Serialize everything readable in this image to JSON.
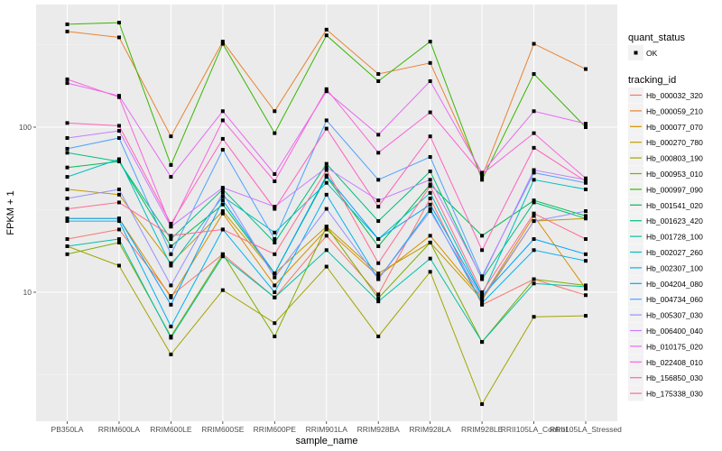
{
  "chart_data": {
    "type": "line",
    "title": "",
    "xlabel": "sample_name",
    "ylabel": "FPKM + 1",
    "yscale": "log10",
    "ylim": [
      1.55,
      620
    ],
    "yticks": [
      10,
      100
    ],
    "ytick_labels": [
      "10",
      "100"
    ],
    "grid": true,
    "legend_position": "right",
    "categories": [
      "PB350LA",
      "RRIM600LA",
      "RRIM600LE",
      "RRIM600SE",
      "RRIM600PE",
      "RRIM901LA",
      "RRIM928BA",
      "RRIM928LA",
      "RRIM928LE",
      "RRII105LA_Control",
      "RRII105LA_Stressed"
    ],
    "legend_shape": {
      "title": "quant_status",
      "entries": [
        "OK"
      ]
    },
    "legend_color_title": "tracking_id",
    "series": [
      {
        "name": "Hb_000032_320",
        "color": "#F8766D",
        "values": [
          21,
          24,
          9.5,
          17,
          9.3,
          22,
          9.7,
          37,
          8.4,
          12,
          9.6
        ]
      },
      {
        "name": "Hb_000059_210",
        "color": "#EA8331",
        "values": [
          380,
          350,
          88,
          330,
          125,
          390,
          210,
          245,
          50,
          320,
          225
        ]
      },
      {
        "name": "Hb_000077_070",
        "color": "#D89000",
        "values": [
          28,
          28,
          9.3,
          30,
          11,
          24,
          12.5,
          22,
          9.2,
          29,
          10.5
        ]
      },
      {
        "name": "Hb_000270_780",
        "color": "#C09B00",
        "values": [
          42,
          39,
          15,
          31,
          13,
          25,
          13,
          20,
          9,
          27,
          28
        ]
      },
      {
        "name": "Hb_000803_190",
        "color": "#A3A500",
        "values": [
          19,
          14.5,
          4.2,
          10.3,
          6.5,
          14.3,
          5.4,
          13.3,
          2.1,
          7.1,
          7.2
        ]
      },
      {
        "name": "Hb_000953_010",
        "color": "#7CAE00",
        "values": [
          17,
          20,
          5.4,
          17,
          5.4,
          25,
          9.2,
          20,
          5,
          12,
          11
        ]
      },
      {
        "name": "Hb_000997_090",
        "color": "#39B600",
        "values": [
          420,
          430,
          59,
          320,
          92,
          360,
          190,
          330,
          48,
          210,
          100
        ]
      },
      {
        "name": "Hb_001541_020",
        "color": "#00BB4E",
        "values": [
          57,
          62,
          19,
          34,
          13,
          50,
          19,
          45,
          22,
          36,
          29
        ]
      },
      {
        "name": "Hb_001623_420",
        "color": "#00BF7D",
        "values": [
          70,
          62,
          21,
          42,
          20,
          60,
          27,
          54,
          12,
          35,
          28
        ]
      },
      {
        "name": "Hb_001728_100",
        "color": "#00C1A3",
        "values": [
          19,
          21,
          5.3,
          16.5,
          9.3,
          18,
          8.8,
          16,
          5,
          11.3,
          10.8
        ]
      },
      {
        "name": "Hb_002027_260",
        "color": "#00BFC4",
        "values": [
          50,
          64,
          14.5,
          38,
          23,
          46,
          21,
          40,
          9.6,
          48,
          42
        ]
      },
      {
        "name": "Hb_002307_100",
        "color": "#00B2F3",
        "values": [
          27,
          27,
          6.2,
          24,
          10,
          39,
          12,
          32,
          8.6,
          18,
          15.5
        ]
      },
      {
        "name": "Hb_004204_080",
        "color": "#00A5FF",
        "values": [
          28,
          28,
          8.4,
          36,
          13,
          51,
          21,
          34,
          9.5,
          21,
          17
        ]
      },
      {
        "name": "Hb_004734_060",
        "color": "#4EA2FF",
        "values": [
          74,
          86,
          17,
          73,
          21,
          110,
          48,
          66,
          12.5,
          53,
          46
        ]
      },
      {
        "name": "Hb_005307_030",
        "color": "#9590FF",
        "values": [
          37,
          42,
          11,
          40,
          12.3,
          32,
          12,
          31,
          9.2,
          27,
          31
        ]
      },
      {
        "name": "Hb_006400_040",
        "color": "#C77CFF",
        "values": [
          86,
          95,
          25,
          43,
          33,
          57,
          36,
          48,
          12.2,
          55,
          48
        ]
      },
      {
        "name": "Hb_010175_020",
        "color": "#E76BF3",
        "values": [
          185,
          155,
          50,
          125,
          52,
          165,
          90,
          190,
          53,
          125,
          105
        ]
      },
      {
        "name": "Hb_022408_010",
        "color": "#FA62DB",
        "values": [
          195,
          152,
          25,
          110,
          47,
          170,
          70,
          123,
          52,
          92,
          49
        ]
      },
      {
        "name": "Hb_156850_030",
        "color": "#FF62BC",
        "values": [
          106,
          102,
          26,
          85,
          32,
          98,
          33,
          88,
          18,
          75,
          47
        ]
      },
      {
        "name": "Hb_175338_030",
        "color": "#FF6C91",
        "values": [
          32,
          35,
          22,
          24,
          17,
          55,
          15,
          44,
          10,
          30,
          21
        ]
      }
    ]
  }
}
